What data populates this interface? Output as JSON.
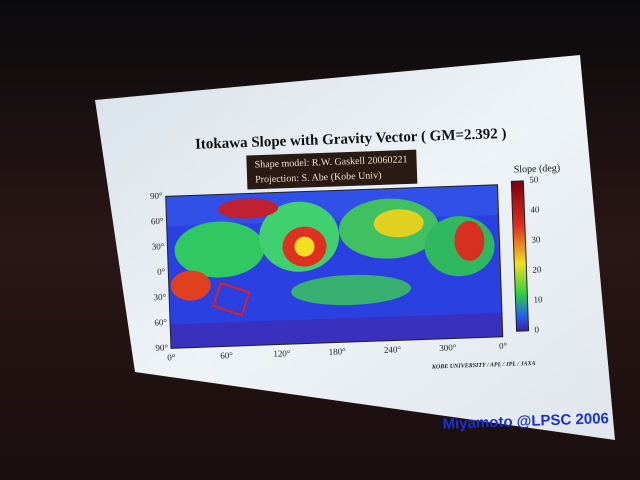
{
  "slide": {
    "title": "Itokawa Slope with Gravity Vector ( GM=2.392 )",
    "info_box": [
      "Shape model: R.W. Gaskell 20060221",
      "Projection: S. Abe (Kobe Univ)"
    ],
    "map": {
      "y_labels": [
        "90°",
        "60°",
        "30°",
        "0°",
        "30°",
        "60°",
        "90°"
      ],
      "x_labels": [
        "0°",
        "60°",
        "120°",
        "180°",
        "240°",
        "300°",
        "0°"
      ]
    },
    "colorbar": {
      "title": "Slope (deg)",
      "labels": [
        "50",
        "40",
        "30",
        "20",
        "10",
        "0"
      ]
    },
    "credit": "KOBE UNIVERSITY / APL / JPL / JAXA",
    "footer": "Miyamoto @LPSC 2006"
  }
}
